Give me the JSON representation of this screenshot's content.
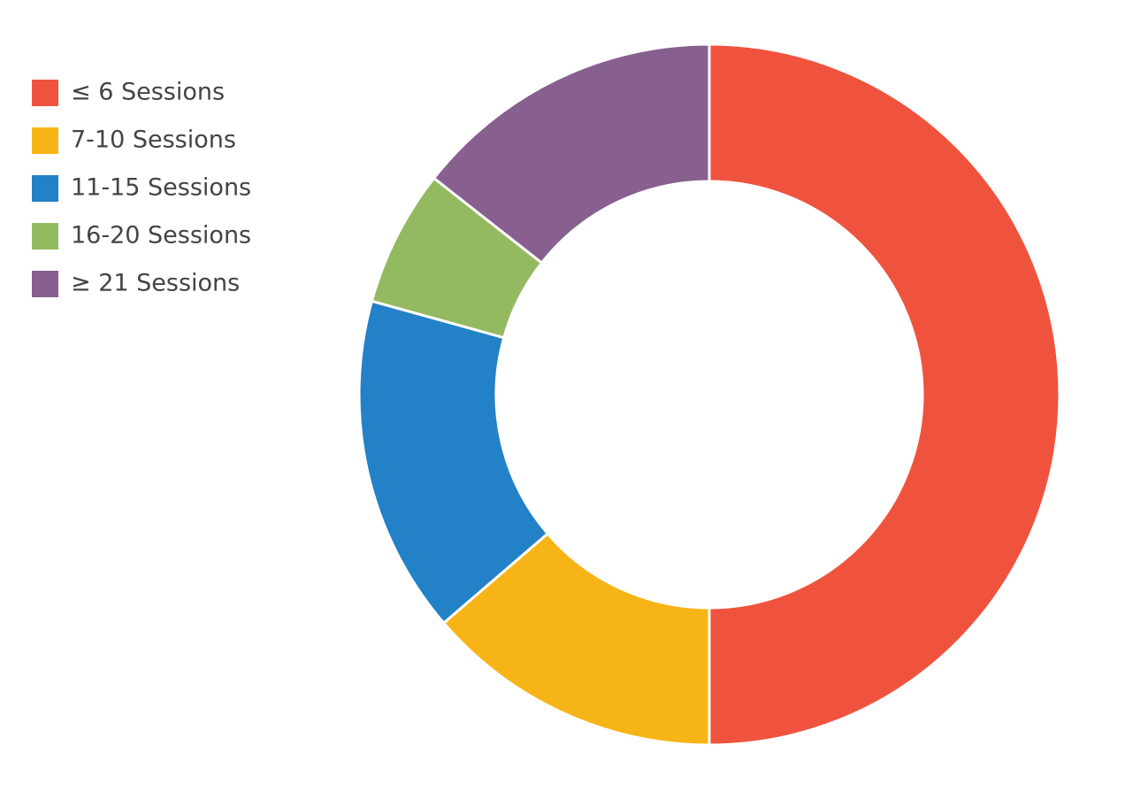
{
  "chart_data": {
    "type": "donut",
    "categories": [
      "≤ 6 Sessions",
      "7-10 Sessions",
      "11-15 Sessions",
      "16-20 Sessions",
      "≥ 21 Sessions"
    ],
    "values": [
      50,
      13.7,
      15.6,
      6.3,
      14.4
    ],
    "colors": [
      "#f0533d",
      "#f7b416",
      "#2381c7",
      "#93b961",
      "#87608f"
    ],
    "legend": "top-left"
  }
}
